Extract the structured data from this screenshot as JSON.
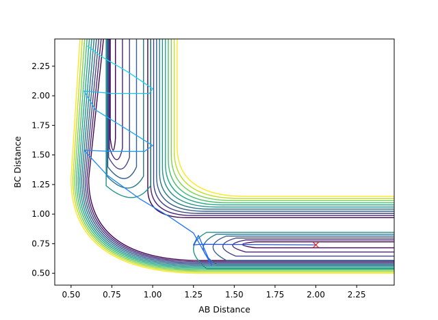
{
  "chart_data": {
    "type": "line",
    "subtype": "contour-with-trajectory",
    "title": "",
    "xlabel": "AB Distance",
    "ylabel": "BC Distance",
    "xlim": [
      0.4,
      2.48
    ],
    "ylim": [
      0.4,
      2.48
    ],
    "xticks": [
      0.5,
      0.75,
      1.0,
      1.25,
      1.5,
      1.75,
      2.0,
      2.25
    ],
    "xtick_labels": [
      "0.50",
      "0.75",
      "1.00",
      "1.25",
      "1.50",
      "1.75",
      "2.00",
      "2.25"
    ],
    "yticks": [
      0.5,
      0.75,
      1.0,
      1.25,
      1.5,
      1.75,
      2.0,
      2.25
    ],
    "ytick_labels": [
      "0.50",
      "0.75",
      "1.00",
      "1.25",
      "1.50",
      "1.75",
      "2.00",
      "2.25"
    ],
    "grid": false,
    "colormap": "viridis",
    "contour_colors": [
      "#440154",
      "#482475",
      "#414487",
      "#355f8d",
      "#2a788e",
      "#21918c",
      "#22a884",
      "#44bf70",
      "#7ad151",
      "#bddf26",
      "#fde725"
    ],
    "contour_levels": 11,
    "trajectory": {
      "color_start": "#1f4fff",
      "color_end": "#18e0ee",
      "points": [
        [
          2.0,
          0.74
        ],
        [
          1.3,
          0.745
        ],
        [
          1.25,
          0.74
        ],
        [
          1.28,
          0.82
        ],
        [
          1.36,
          0.57
        ],
        [
          1.25,
          0.84
        ],
        [
          1.1,
          0.98
        ],
        [
          0.92,
          1.13
        ],
        [
          0.72,
          1.33
        ],
        [
          0.58,
          1.54
        ],
        [
          0.75,
          1.53
        ],
        [
          0.95,
          1.53
        ],
        [
          1.0,
          1.58
        ],
        [
          0.85,
          1.71
        ],
        [
          0.65,
          1.88
        ],
        [
          0.58,
          2.04
        ],
        [
          0.75,
          2.02
        ],
        [
          0.98,
          2.02
        ],
        [
          1.0,
          2.06
        ],
        [
          0.85,
          2.2
        ],
        [
          0.7,
          2.32
        ],
        [
          0.6,
          2.42
        ]
      ]
    },
    "marker": {
      "x": 2.0,
      "y": 0.74,
      "symbol": "x",
      "color": "#e8271f"
    }
  }
}
